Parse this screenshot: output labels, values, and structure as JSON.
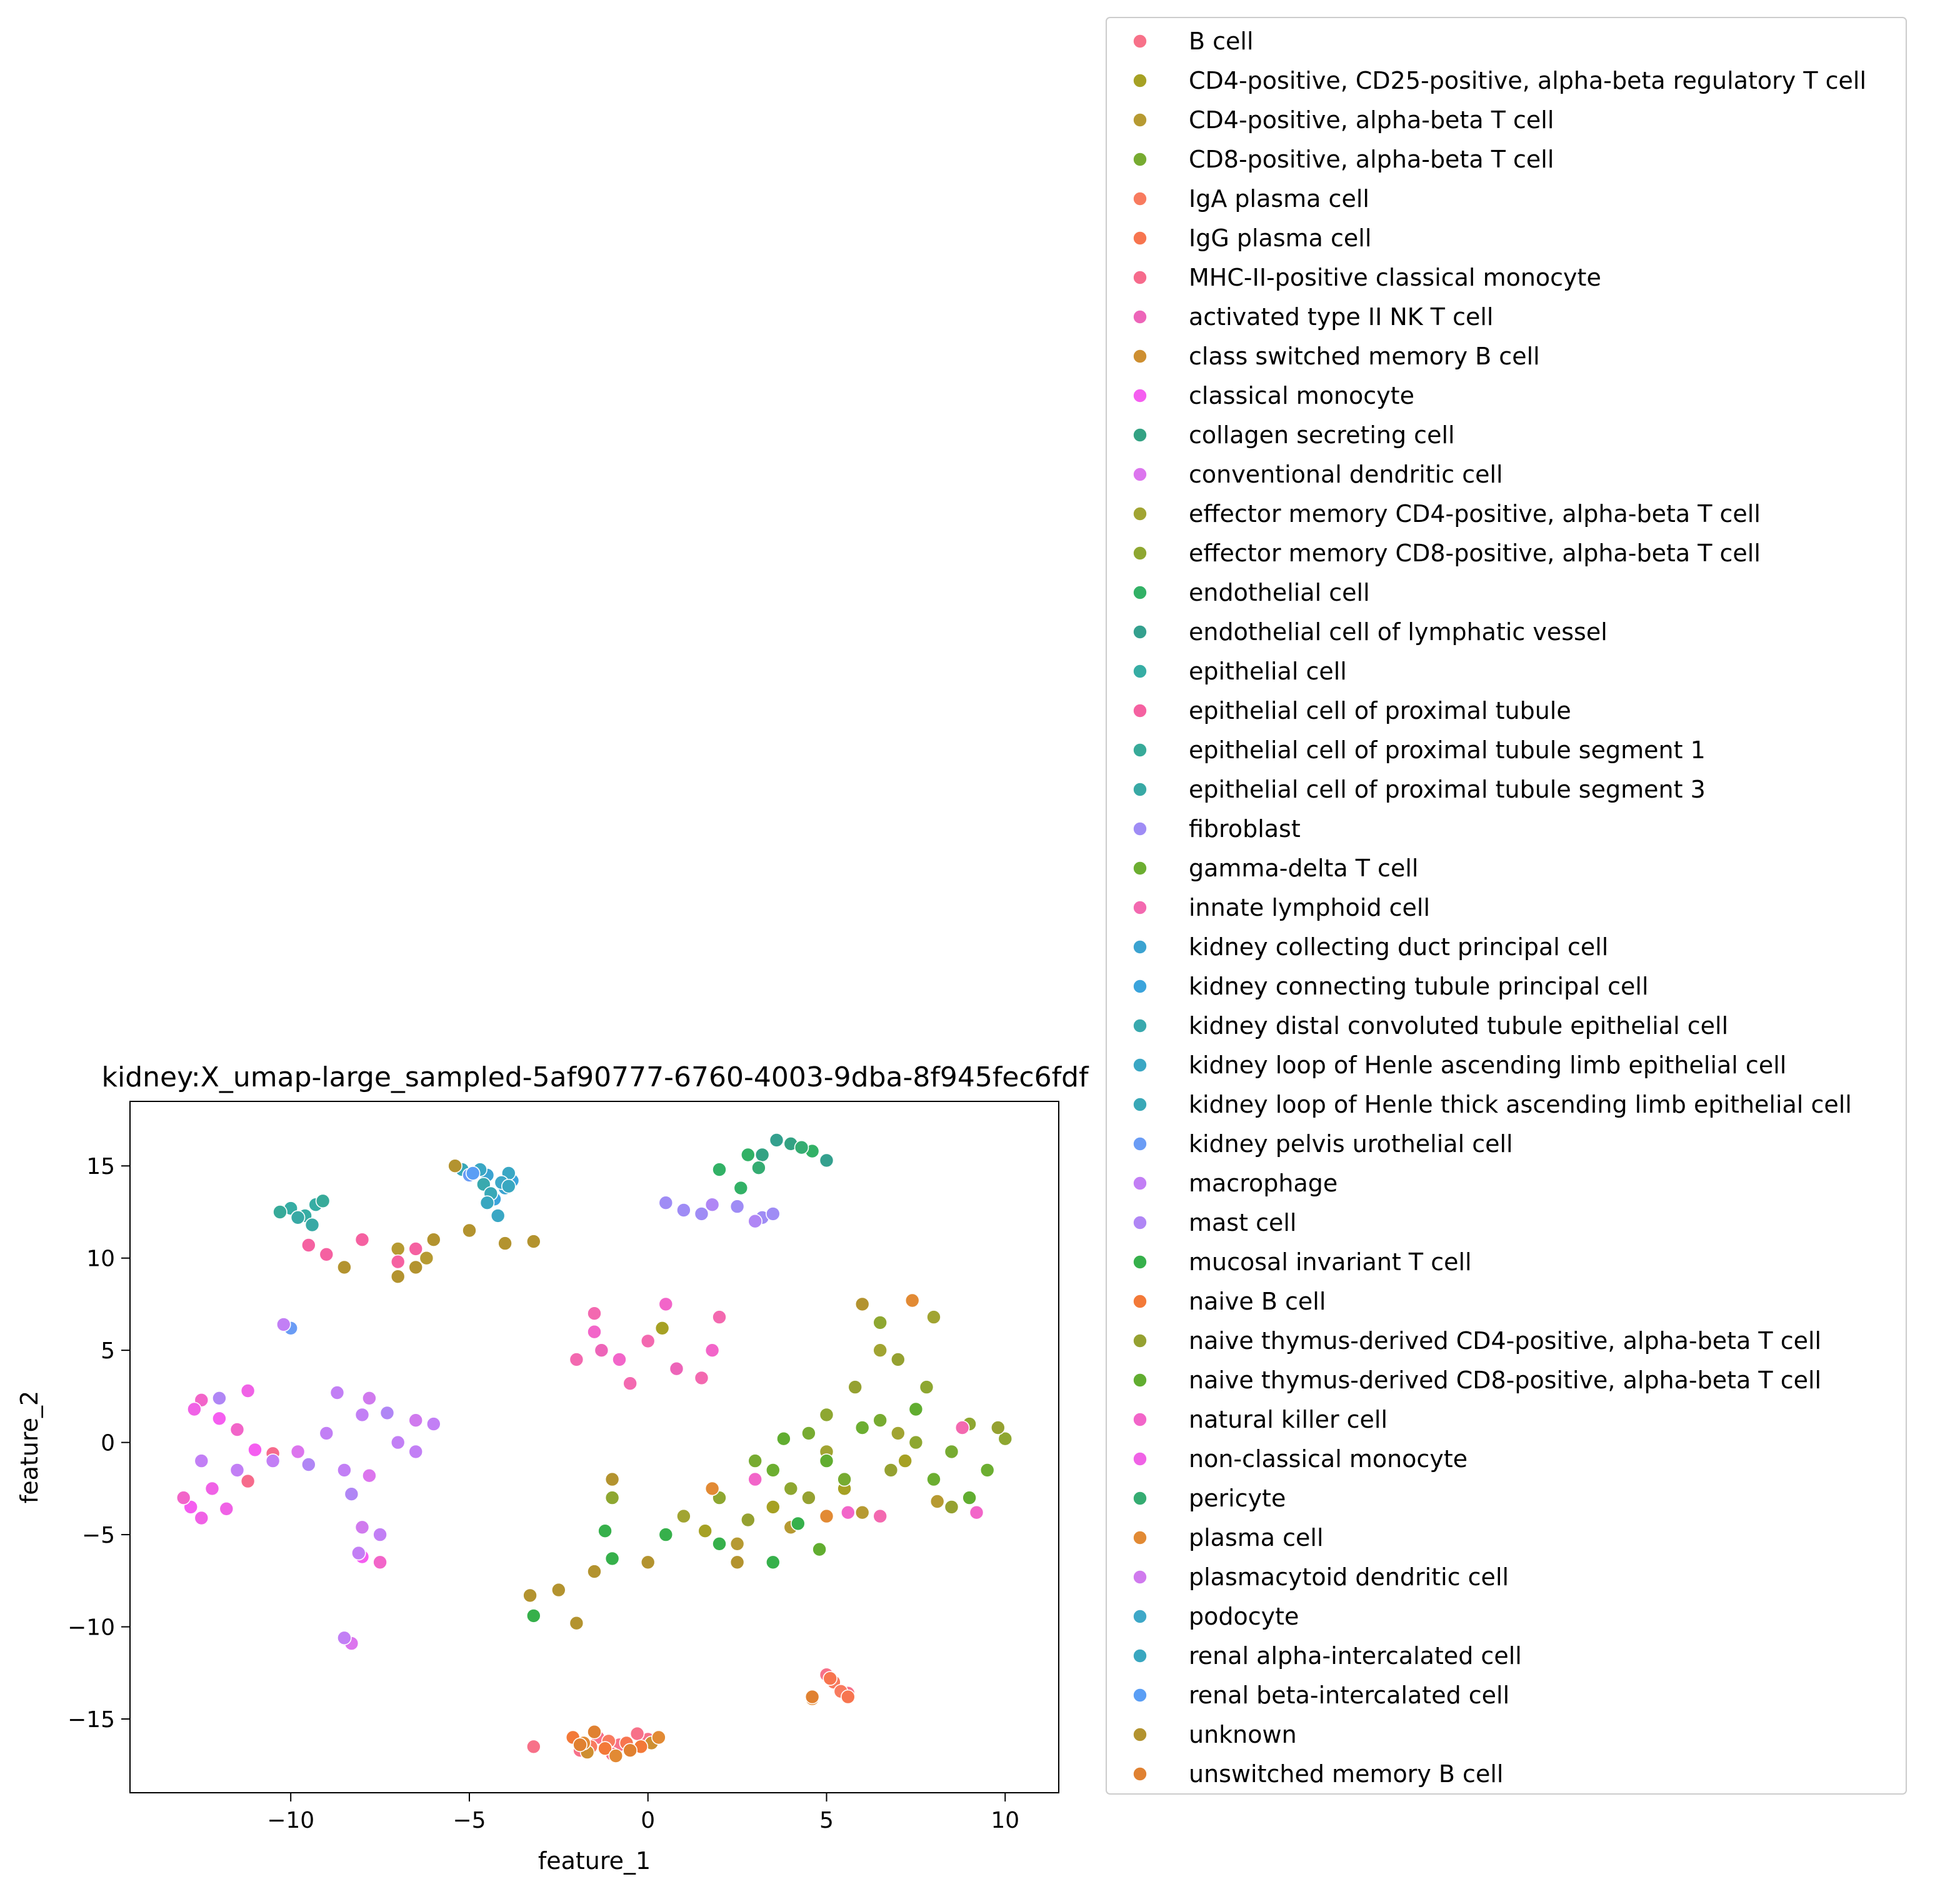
{
  "chart_data": {
    "type": "scatter",
    "title": "kidney:X_umap-large_sampled-5af90777-6760-4003-9dba-8f945fec6fdf",
    "xlabel": "feature_1",
    "ylabel": "feature_2",
    "xlim": [
      -14.5,
      11.5
    ],
    "ylim": [
      -19.0,
      18.5
    ],
    "xticks": [
      -10,
      -5,
      0,
      5,
      10
    ],
    "yticks": [
      -15,
      -10,
      -5,
      0,
      5,
      10,
      15
    ],
    "xtick_labels": [
      "−10",
      "−5",
      "0",
      "5",
      "10"
    ],
    "ytick_labels": [
      "−15",
      "−10",
      "−5",
      "0",
      "5",
      "10",
      "15"
    ],
    "legend_position": "outside-right",
    "series": [
      {
        "name": "B cell",
        "color": "#f77189",
        "points": [
          [
            -1.4,
            -16.0
          ],
          [
            -0.8,
            -16.4
          ],
          [
            0.0,
            -16.1
          ],
          [
            -1.9,
            -16.7
          ],
          [
            -0.3,
            -15.8
          ],
          [
            -1.0,
            -16.9
          ],
          [
            5.0,
            -12.6
          ],
          [
            5.6,
            -13.6
          ],
          [
            -3.2,
            -16.5
          ]
        ]
      },
      {
        "name": "CD4-positive, CD25-positive, alpha-beta regulatory T cell",
        "color": "#a6a124",
        "points": [
          [
            3.5,
            -3.5
          ],
          [
            5.5,
            -2.5
          ],
          [
            1.6,
            -4.8
          ],
          [
            7.2,
            -1.0
          ],
          [
            0.4,
            6.2
          ]
        ]
      },
      {
        "name": "CD4-positive, alpha-beta T cell",
        "color": "#b69a32",
        "points": [
          [
            4.0,
            -4.6
          ],
          [
            6.0,
            -3.8
          ],
          [
            2.5,
            -5.5
          ],
          [
            8.1,
            -3.2
          ],
          [
            -6.2,
            10.0
          ],
          [
            -7.0,
            10.5
          ]
        ]
      },
      {
        "name": "CD8-positive, alpha-beta T cell",
        "color": "#77ab31",
        "points": [
          [
            4.5,
            0.5
          ],
          [
            6.5,
            1.2
          ],
          [
            3.0,
            -1.0
          ],
          [
            8.5,
            -0.5
          ],
          [
            5.5,
            -2.0
          ]
        ]
      },
      {
        "name": "IgA plasma cell",
        "color": "#f87b5f",
        "points": [
          [
            5.2,
            -13.0
          ],
          [
            5.4,
            -13.5
          ],
          [
            -1.1,
            -16.2
          ],
          [
            -1.6,
            -16.5
          ]
        ]
      },
      {
        "name": "IgG plasma cell",
        "color": "#f7754f",
        "points": [
          [
            5.1,
            -12.8
          ],
          [
            5.6,
            -13.8
          ],
          [
            -0.6,
            -16.3
          ]
        ]
      },
      {
        "name": "MHC-II-positive classical monocyte",
        "color": "#f66b8c",
        "points": [
          [
            -11.2,
            -2.1
          ],
          [
            -10.5,
            -0.6
          ]
        ]
      },
      {
        "name": "activated type II NK T cell",
        "color": "#ed65b9",
        "points": [
          [
            -1.3,
            5.0
          ],
          [
            0.8,
            4.0
          ]
        ]
      },
      {
        "name": "class switched memory B cell",
        "color": "#ce8f31",
        "points": [
          [
            -1.7,
            -16.8
          ],
          [
            0.1,
            -16.3
          ],
          [
            4.6,
            -13.8
          ]
        ]
      },
      {
        "name": "classical monocyte",
        "color": "#f55ef0",
        "points": [
          [
            -12.8,
            -3.5
          ],
          [
            -12.0,
            1.3
          ],
          [
            -8.0,
            -6.2
          ],
          [
            -11.0,
            -0.4
          ]
        ]
      },
      {
        "name": "collagen secreting cell",
        "color": "#33a283",
        "points": [
          [
            3.2,
            15.6
          ],
          [
            4.0,
            16.2
          ]
        ]
      },
      {
        "name": "conventional dendritic cell",
        "color": "#dc75ee",
        "points": [
          [
            -9.8,
            -0.5
          ],
          [
            -8.3,
            -10.9
          ],
          [
            -7.8,
            -1.8
          ]
        ]
      },
      {
        "name": "effector memory CD4-positive, alpha-beta T cell",
        "color": "#a1a432",
        "points": [
          [
            3.0,
            -2.0
          ],
          [
            5.0,
            -0.5
          ],
          [
            7.0,
            0.5
          ],
          [
            1.0,
            -4.0
          ],
          [
            6.5,
            5.0
          ],
          [
            8.0,
            6.8
          ]
        ]
      },
      {
        "name": "effector memory CD8-positive, alpha-beta T cell",
        "color": "#8ea731",
        "points": [
          [
            5.0,
            1.5
          ],
          [
            7.5,
            0.0
          ],
          [
            9.0,
            1.0
          ],
          [
            4.0,
            -2.5
          ],
          [
            2.0,
            -3.0
          ],
          [
            6.5,
            6.5
          ],
          [
            7.8,
            3.0
          ],
          [
            10.0,
            0.2
          ],
          [
            -1.0,
            -3.0
          ]
        ]
      },
      {
        "name": "endothelial cell",
        "color": "#32b166",
        "points": [
          [
            2.0,
            14.8
          ],
          [
            2.8,
            15.6
          ],
          [
            4.6,
            15.8
          ],
          [
            2.6,
            13.8
          ]
        ]
      },
      {
        "name": "endothelial cell of lymphatic vessel",
        "color": "#34a08e",
        "points": [
          [
            3.6,
            16.4
          ],
          [
            5.0,
            15.3
          ]
        ]
      },
      {
        "name": "epithelial cell",
        "color": "#36ada4",
        "points": [
          [
            -10.0,
            12.7
          ],
          [
            -9.3,
            12.9
          ],
          [
            -9.6,
            12.3
          ]
        ]
      },
      {
        "name": "epithelial cell of proximal tubule",
        "color": "#f561a1",
        "points": [
          [
            -9.5,
            10.7
          ],
          [
            -8.0,
            11.0
          ],
          [
            -6.5,
            10.5
          ],
          [
            -7.0,
            9.8
          ],
          [
            -9.0,
            10.2
          ]
        ]
      },
      {
        "name": "epithelial cell of proximal tubule segment 1",
        "color": "#37aa99",
        "points": [
          [
            -10.3,
            12.5
          ],
          [
            -9.1,
            13.1
          ]
        ]
      },
      {
        "name": "epithelial cell of proximal tubule segment 3",
        "color": "#38a9a5",
        "points": [
          [
            -9.8,
            12.2
          ],
          [
            -9.4,
            11.8
          ]
        ]
      },
      {
        "name": "fibroblast",
        "color": "#9f8cf5",
        "points": [
          [
            0.5,
            13.0
          ],
          [
            1.5,
            12.4
          ],
          [
            2.5,
            12.8
          ],
          [
            3.2,
            12.2
          ],
          [
            1.0,
            12.6
          ],
          [
            3.5,
            12.4
          ]
        ]
      },
      {
        "name": "gamma-delta T cell",
        "color": "#6cae31",
        "points": [
          [
            3.5,
            -1.5
          ],
          [
            6.0,
            0.8
          ],
          [
            8.0,
            -2.0
          ],
          [
            9.5,
            -1.5
          ]
        ]
      },
      {
        "name": "innate lymphoid cell",
        "color": "#f369b0",
        "points": [
          [
            -1.5,
            7.0
          ],
          [
            0.0,
            5.5
          ],
          [
            2.0,
            6.8
          ],
          [
            -2.0,
            4.5
          ],
          [
            1.5,
            3.5
          ],
          [
            -0.5,
            3.2
          ],
          [
            8.8,
            0.8
          ],
          [
            6.5,
            -4.0
          ]
        ]
      },
      {
        "name": "kidney collecting duct principal cell",
        "color": "#3ba3d1",
        "points": [
          [
            -4.5,
            14.5
          ],
          [
            -4.0,
            13.8
          ]
        ]
      },
      {
        "name": "kidney connecting tubule principal cell",
        "color": "#3ba4dc",
        "points": [
          [
            -3.8,
            14.2
          ],
          [
            -4.3,
            13.2
          ]
        ]
      },
      {
        "name": "kidney distal convoluted tubule epithelial cell",
        "color": "#39a9ae",
        "points": [
          [
            -4.6,
            14.0
          ]
        ]
      },
      {
        "name": "kidney loop of Henle ascending limb epithelial cell",
        "color": "#3aa7c4",
        "points": [
          [
            -3.9,
            14.6
          ],
          [
            -4.7,
            14.8
          ],
          [
            -4.2,
            12.3
          ]
        ]
      },
      {
        "name": "kidney loop of Henle thick ascending limb epithelial cell",
        "color": "#39a8b7",
        "points": [
          [
            -5.2,
            14.8
          ],
          [
            -4.4,
            13.5
          ]
        ]
      },
      {
        "name": "kidney pelvis urothelial cell",
        "color": "#6a9cf5",
        "points": [
          [
            -5.0,
            14.5
          ],
          [
            -10.0,
            6.2
          ]
        ]
      },
      {
        "name": "macrophage",
        "color": "#c27ff5",
        "points": [
          [
            -8.0,
            1.5
          ],
          [
            -7.0,
            0.0
          ],
          [
            -6.0,
            1.0
          ],
          [
            -8.5,
            -1.5
          ],
          [
            -10.5,
            -1.0
          ],
          [
            -9.0,
            0.5
          ],
          [
            -7.5,
            -5.0
          ],
          [
            -6.5,
            -0.5
          ],
          [
            -11.5,
            -1.5
          ],
          [
            -12.5,
            -1.0
          ],
          [
            -8.7,
            2.7
          ],
          [
            -10.2,
            6.4
          ],
          [
            -8.1,
            -6.0
          ],
          [
            -8.5,
            -10.6
          ]
        ]
      },
      {
        "name": "mast cell",
        "color": "#b086f5",
        "points": [
          [
            -8.3,
            -2.8
          ],
          [
            -7.3,
            1.6
          ],
          [
            -9.5,
            -1.2
          ],
          [
            -12.0,
            2.4
          ],
          [
            1.8,
            12.9
          ],
          [
            3.0,
            12.0
          ]
        ]
      },
      {
        "name": "mucosal invariant T cell",
        "color": "#36b04b",
        "points": [
          [
            0.5,
            -5.0
          ],
          [
            2.0,
            -5.5
          ],
          [
            3.5,
            -6.5
          ],
          [
            -1.0,
            -6.3
          ],
          [
            4.2,
            -4.4
          ],
          [
            -3.2,
            -9.4
          ],
          [
            -1.2,
            -4.8
          ]
        ]
      },
      {
        "name": "naive B cell",
        "color": "#f37938",
        "points": [
          [
            -2.1,
            -16.0
          ],
          [
            -1.2,
            -16.6
          ],
          [
            -0.2,
            -16.5
          ]
        ]
      },
      {
        "name": "naive thymus-derived CD4-positive, alpha-beta T cell",
        "color": "#95a131",
        "points": [
          [
            4.5,
            -3.0
          ],
          [
            6.8,
            -1.5
          ],
          [
            2.8,
            -4.2
          ],
          [
            5.8,
            3.0
          ],
          [
            7.0,
            4.5
          ],
          [
            8.5,
            -3.5
          ],
          [
            9.8,
            0.8
          ]
        ]
      },
      {
        "name": "naive thymus-derived CD8-positive, alpha-beta T cell",
        "color": "#61ad30",
        "points": [
          [
            5.0,
            -1.0
          ],
          [
            7.5,
            1.8
          ],
          [
            3.8,
            0.2
          ],
          [
            9.0,
            -3.0
          ],
          [
            4.8,
            -5.8
          ]
        ]
      },
      {
        "name": "natural killer cell",
        "color": "#f265c9",
        "points": [
          [
            -1.5,
            6.0
          ],
          [
            0.5,
            7.5
          ],
          [
            -0.8,
            4.5
          ],
          [
            1.8,
            5.0
          ],
          [
            -12.5,
            2.3
          ],
          [
            -13.0,
            -3.0
          ],
          [
            -11.5,
            0.7
          ],
          [
            -7.5,
            -6.5
          ],
          [
            3.0,
            -2.0
          ],
          [
            5.6,
            -3.8
          ],
          [
            9.2,
            -3.8
          ]
        ]
      },
      {
        "name": "non-classical monocyte",
        "color": "#f062e6",
        "points": [
          [
            -12.2,
            -2.5
          ],
          [
            -12.7,
            1.8
          ],
          [
            -12.5,
            -4.1
          ],
          [
            -11.2,
            2.8
          ],
          [
            -11.8,
            -3.6
          ]
        ]
      },
      {
        "name": "pericyte",
        "color": "#35ac72",
        "points": [
          [
            3.1,
            14.9
          ],
          [
            4.3,
            16.0
          ]
        ]
      },
      {
        "name": "plasma cell",
        "color": "#e28a34",
        "points": [
          [
            -1.8,
            -16.3
          ],
          [
            -0.9,
            -17.0
          ],
          [
            0.3,
            -16.0
          ],
          [
            4.6,
            -13.9
          ],
          [
            1.8,
            -2.5
          ],
          [
            5.0,
            -4.0
          ],
          [
            7.4,
            7.7
          ]
        ]
      },
      {
        "name": "plasmacytoid dendritic cell",
        "color": "#d07aee",
        "points": [
          [
            -7.8,
            2.4
          ],
          [
            -6.5,
            1.2
          ],
          [
            -8.0,
            -4.6
          ]
        ]
      },
      {
        "name": "podocyte",
        "color": "#3ea8c8",
        "points": [
          [
            -4.1,
            14.1
          ]
        ]
      },
      {
        "name": "renal alpha-intercalated cell",
        "color": "#39a7c0",
        "points": [
          [
            -4.5,
            13.0
          ],
          [
            -3.9,
            13.9
          ]
        ]
      },
      {
        "name": "renal beta-intercalated cell",
        "color": "#5a9ef5",
        "points": [
          [
            -4.9,
            14.6
          ]
        ]
      },
      {
        "name": "unknown",
        "color": "#b3932f",
        "points": [
          [
            -8.5,
            9.5
          ],
          [
            -7.0,
            9.0
          ],
          [
            -6.0,
            11.0
          ],
          [
            -5.0,
            11.5
          ],
          [
            -4.0,
            10.8
          ],
          [
            -3.2,
            10.9
          ],
          [
            -5.4,
            15.0
          ],
          [
            -2.5,
            -8.0
          ],
          [
            -2.0,
            -9.8
          ],
          [
            -1.5,
            -7.0
          ],
          [
            0.0,
            -6.5
          ],
          [
            2.5,
            -6.5
          ],
          [
            -3.3,
            -8.3
          ],
          [
            -1.0,
            -2.0
          ],
          [
            6.0,
            7.5
          ],
          [
            -6.5,
            9.5
          ]
        ]
      },
      {
        "name": "unswitched memory B cell",
        "color": "#e08131",
        "points": [
          [
            -1.5,
            -15.7
          ],
          [
            -0.5,
            -16.7
          ],
          [
            -1.9,
            -16.4
          ],
          [
            4.6,
            -13.8
          ]
        ]
      }
    ]
  }
}
